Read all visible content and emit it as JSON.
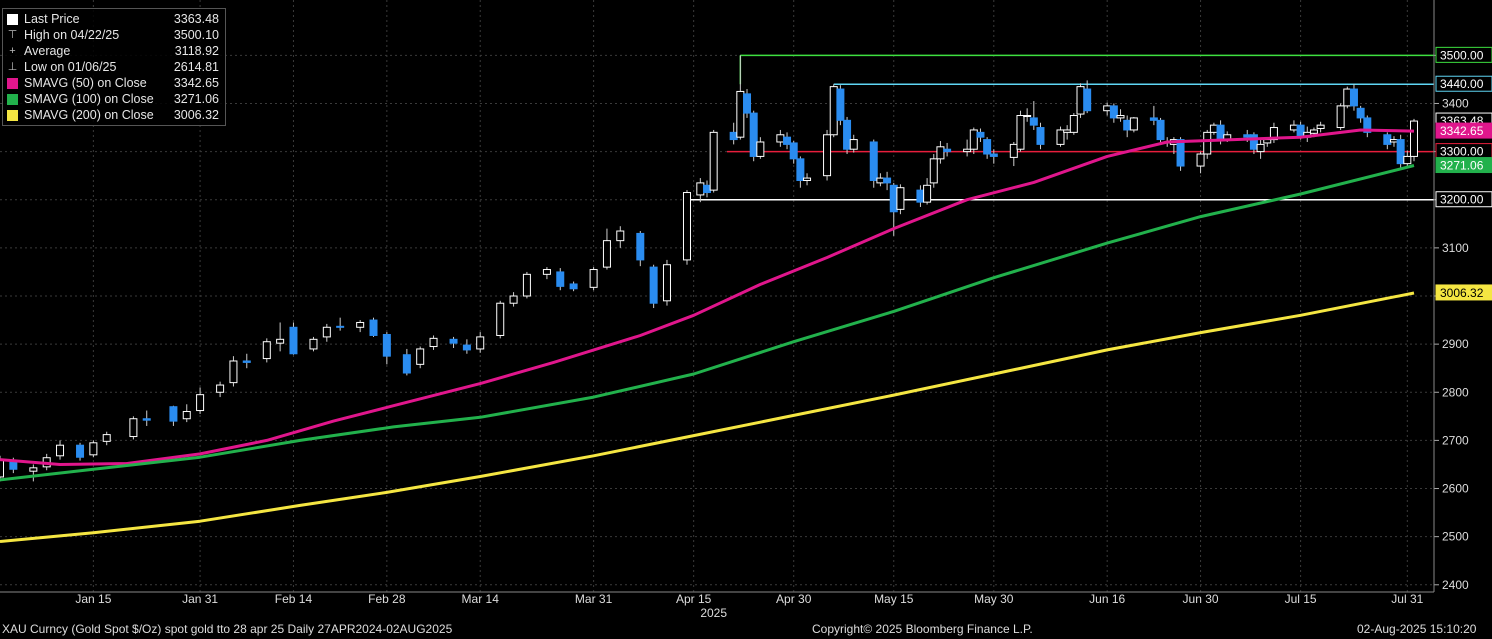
{
  "legend": [
    {
      "label": "Last Price",
      "value": "3363.48",
      "marker": "square",
      "color": "#ffffff"
    },
    {
      "label": "High on 04/22/25",
      "value": "3500.10",
      "marker": "high",
      "color": "#bbbbbb"
    },
    {
      "label": "Average",
      "value": "3118.92",
      "marker": "avg",
      "color": "#bbbbbb"
    },
    {
      "label": "Low on 01/06/25",
      "value": "2614.81",
      "marker": "low",
      "color": "#bbbbbb"
    },
    {
      "label": "SMAVG (50)  on Close",
      "value": "3342.65",
      "marker": "square",
      "color": "#e0168c"
    },
    {
      "label": "SMAVG (100)  on Close",
      "value": "3271.06",
      "marker": "square",
      "color": "#22b14c"
    },
    {
      "label": "SMAVG (200)  on Close",
      "value": "3006.32",
      "marker": "square",
      "color": "#f5e642"
    }
  ],
  "footer": {
    "security": "XAU Curncy (Gold Spot  $/Oz) spot gold tto 28 apr 25  Daily 27APR2024-02AUG2025",
    "copyright": "Copyright© 2025 Bloomberg Finance L.P.",
    "timestamp": "02-Aug-2025 15:10:20"
  },
  "chart_data": {
    "type": "line",
    "title": "",
    "xlabel": "",
    "ylabel": "",
    "ylim": [
      2385,
      3615
    ],
    "yticks": [
      2400,
      2500,
      2600,
      2700,
      2800,
      2900,
      3000,
      3100,
      3200,
      3300,
      3400,
      3500
    ],
    "ytick_labels": [
      "2400",
      "2500",
      "2600",
      "2700",
      "2800",
      "2900",
      "3000",
      "3100",
      "3200",
      "3300",
      "3400",
      "3500"
    ],
    "x_start": "2025-01-01",
    "x_end": "2025-08-04",
    "xticks": [
      {
        "date": "2025-01-15",
        "label": "Jan 15"
      },
      {
        "date": "2025-01-31",
        "label": "Jan 31"
      },
      {
        "date": "2025-02-14",
        "label": "Feb 14"
      },
      {
        "date": "2025-02-28",
        "label": "Feb 28"
      },
      {
        "date": "2025-03-14",
        "label": "Mar 14"
      },
      {
        "date": "2025-03-31",
        "label": "Mar 31"
      },
      {
        "date": "2025-04-15",
        "label": "Apr 15"
      },
      {
        "date": "2025-04-30",
        "label": "Apr 30"
      },
      {
        "date": "2025-05-15",
        "label": "May 15"
      },
      {
        "date": "2025-05-30",
        "label": "May 30"
      },
      {
        "date": "2025-06-16",
        "label": "Jun 16"
      },
      {
        "date": "2025-06-30",
        "label": "Jun 30"
      },
      {
        "date": "2025-07-15",
        "label": "Jul 15"
      },
      {
        "date": "2025-07-31",
        "label": "Jul 31"
      }
    ],
    "year_label": {
      "date": "2025-04-18",
      "label": "2025"
    },
    "grid": true,
    "legend_position": "top-left",
    "up_color": "#ffffff",
    "down_color": "#2a8cf0",
    "series": [
      {
        "name": "SMAVG (50)  on Close",
        "color": "#e0168c",
        "points": [
          [
            "2025-01-01",
            2660
          ],
          [
            "2025-01-10",
            2650
          ],
          [
            "2025-01-20",
            2652
          ],
          [
            "2025-01-31",
            2672
          ],
          [
            "2025-02-10",
            2700
          ],
          [
            "2025-02-20",
            2740
          ],
          [
            "2025-03-01",
            2772
          ],
          [
            "2025-03-14",
            2818
          ],
          [
            "2025-03-25",
            2862
          ],
          [
            "2025-04-07",
            2918
          ],
          [
            "2025-04-15",
            2960
          ],
          [
            "2025-04-25",
            3024
          ],
          [
            "2025-05-05",
            3080
          ],
          [
            "2025-05-15",
            3140
          ],
          [
            "2025-05-26",
            3200
          ],
          [
            "2025-06-05",
            3236
          ],
          [
            "2025-06-16",
            3290
          ],
          [
            "2025-06-25",
            3320
          ],
          [
            "2025-07-05",
            3325
          ],
          [
            "2025-07-15",
            3330
          ],
          [
            "2025-07-24",
            3345
          ],
          [
            "2025-08-01",
            3342.65
          ]
        ]
      },
      {
        "name": "SMAVG (100)  on Close",
        "color": "#22b14c",
        "points": [
          [
            "2025-01-01",
            2618
          ],
          [
            "2025-01-15",
            2640
          ],
          [
            "2025-01-31",
            2665
          ],
          [
            "2025-02-15",
            2700
          ],
          [
            "2025-03-01",
            2728
          ],
          [
            "2025-03-14",
            2748
          ],
          [
            "2025-03-31",
            2790
          ],
          [
            "2025-04-15",
            2838
          ],
          [
            "2025-04-30",
            2905
          ],
          [
            "2025-05-15",
            2968
          ],
          [
            "2025-05-30",
            3038
          ],
          [
            "2025-06-16",
            3110
          ],
          [
            "2025-06-30",
            3165
          ],
          [
            "2025-07-15",
            3212
          ],
          [
            "2025-08-01",
            3271.06
          ]
        ]
      },
      {
        "name": "SMAVG (200)  on Close",
        "color": "#f5e642",
        "points": [
          [
            "2025-01-01",
            2490
          ],
          [
            "2025-01-15",
            2508
          ],
          [
            "2025-01-31",
            2532
          ],
          [
            "2025-02-15",
            2565
          ],
          [
            "2025-02-28",
            2592
          ],
          [
            "2025-03-14",
            2625
          ],
          [
            "2025-03-31",
            2668
          ],
          [
            "2025-04-15",
            2710
          ],
          [
            "2025-04-30",
            2752
          ],
          [
            "2025-05-15",
            2794
          ],
          [
            "2025-05-30",
            2838
          ],
          [
            "2025-06-16",
            2888
          ],
          [
            "2025-06-30",
            2924
          ],
          [
            "2025-07-15",
            2960
          ],
          [
            "2025-08-01",
            3006.32
          ]
        ]
      }
    ],
    "candles": [
      [
        "2025-01-01",
        2624,
        2660,
        2614.81,
        2668
      ],
      [
        "2025-01-03",
        2655,
        2640,
        2632,
        2664
      ],
      [
        "2025-01-06",
        2636,
        2643,
        2614.81,
        2650
      ],
      [
        "2025-01-08",
        2645,
        2664,
        2638,
        2672
      ],
      [
        "2025-01-10",
        2668,
        2690,
        2660,
        2700
      ],
      [
        "2025-01-13",
        2690,
        2665,
        2658,
        2695
      ],
      [
        "2025-01-15",
        2670,
        2695,
        2665,
        2700
      ],
      [
        "2025-01-17",
        2698,
        2712,
        2690,
        2718
      ],
      [
        "2025-01-21",
        2708,
        2745,
        2702,
        2750
      ],
      [
        "2025-01-23",
        2745,
        2742,
        2730,
        2762
      ],
      [
        "2025-01-27",
        2770,
        2740,
        2730,
        2772
      ],
      [
        "2025-01-29",
        2745,
        2760,
        2738,
        2775
      ],
      [
        "2025-01-31",
        2762,
        2795,
        2755,
        2810
      ],
      [
        "2025-02-03",
        2800,
        2815,
        2790,
        2822
      ],
      [
        "2025-02-05",
        2820,
        2865,
        2812,
        2875
      ],
      [
        "2025-02-07",
        2865,
        2862,
        2850,
        2880
      ],
      [
        "2025-02-10",
        2870,
        2905,
        2862,
        2912
      ],
      [
        "2025-02-12",
        2902,
        2910,
        2885,
        2945
      ],
      [
        "2025-02-14",
        2935,
        2880,
        2878,
        2945
      ],
      [
        "2025-02-17",
        2890,
        2910,
        2885,
        2915
      ],
      [
        "2025-02-19",
        2915,
        2935,
        2905,
        2942
      ],
      [
        "2025-02-21",
        2937,
        2935,
        2928,
        2955
      ],
      [
        "2025-02-24",
        2935,
        2945,
        2925,
        2950
      ],
      [
        "2025-02-26",
        2950,
        2918,
        2915,
        2955
      ],
      [
        "2025-02-28",
        2920,
        2875,
        2858,
        2925
      ],
      [
        "2025-03-03",
        2878,
        2840,
        2835,
        2890
      ],
      [
        "2025-03-05",
        2858,
        2890,
        2850,
        2895
      ],
      [
        "2025-03-07",
        2895,
        2912,
        2888,
        2918
      ],
      [
        "2025-03-10",
        2910,
        2902,
        2892,
        2915
      ],
      [
        "2025-03-12",
        2898,
        2888,
        2880,
        2910
      ],
      [
        "2025-03-14",
        2890,
        2915,
        2882,
        2925
      ],
      [
        "2025-03-17",
        2918,
        2985,
        2912,
        2990
      ],
      [
        "2025-03-19",
        2985,
        3000,
        2978,
        3008
      ],
      [
        "2025-03-21",
        3000,
        3045,
        2995,
        3050
      ],
      [
        "2025-03-24",
        3045,
        3055,
        3035,
        3060
      ],
      [
        "2025-03-26",
        3050,
        3020,
        3012,
        3058
      ],
      [
        "2025-03-28",
        3025,
        3015,
        3010,
        3030
      ],
      [
        "2025-03-31",
        3018,
        3055,
        3012,
        3060
      ],
      [
        "2025-04-02",
        3060,
        3115,
        3055,
        3140
      ],
      [
        "2025-04-04",
        3115,
        3135,
        3100,
        3145
      ],
      [
        "2025-04-07",
        3130,
        3075,
        3062,
        3135
      ],
      [
        "2025-04-09",
        3060,
        2985,
        2975,
        3065
      ],
      [
        "2025-04-11",
        2990,
        3065,
        2980,
        3075
      ],
      [
        "2025-04-14",
        3075,
        3215,
        3065,
        3220
      ],
      [
        "2025-04-16",
        3210,
        3235,
        3195,
        3245
      ],
      [
        "2025-04-17",
        3230,
        3215,
        3205,
        3240
      ],
      [
        "2025-04-18",
        3220,
        3340,
        3215,
        3345
      ],
      [
        "2025-04-21",
        3340,
        3325,
        3315,
        3360
      ],
      [
        "2025-04-22",
        3330,
        3425,
        3325,
        3500.1
      ],
      [
        "2025-04-23",
        3420,
        3380,
        3370,
        3430
      ],
      [
        "2025-04-24",
        3380,
        3290,
        3280,
        3385
      ],
      [
        "2025-04-25",
        3290,
        3320,
        3285,
        3330
      ],
      [
        "2025-04-28",
        3320,
        3335,
        3310,
        3345
      ],
      [
        "2025-04-29",
        3330,
        3315,
        3305,
        3340
      ],
      [
        "2025-04-30",
        3318,
        3285,
        3275,
        3322
      ],
      [
        "2025-05-01",
        3285,
        3240,
        3225,
        3290
      ],
      [
        "2025-05-02",
        3240,
        3245,
        3230,
        3255
      ],
      [
        "2025-05-05",
        3250,
        3335,
        3240,
        3345
      ],
      [
        "2025-05-06",
        3335,
        3435,
        3330,
        3440
      ],
      [
        "2025-05-07",
        3430,
        3365,
        3355,
        3438
      ],
      [
        "2025-05-08",
        3365,
        3305,
        3295,
        3372
      ],
      [
        "2025-05-09",
        3305,
        3325,
        3298,
        3335
      ],
      [
        "2025-05-12",
        3320,
        3240,
        3225,
        3325
      ],
      [
        "2025-05-13",
        3235,
        3245,
        3228,
        3255
      ],
      [
        "2025-05-14",
        3245,
        3235,
        3220,
        3258
      ],
      [
        "2025-05-15",
        3230,
        3175,
        3125,
        3235
      ],
      [
        "2025-05-16",
        3180,
        3225,
        3170,
        3232
      ],
      [
        "2025-05-19",
        3220,
        3195,
        3185,
        3230
      ],
      [
        "2025-05-20",
        3195,
        3230,
        3190,
        3245
      ],
      [
        "2025-05-21",
        3235,
        3285,
        3225,
        3295
      ],
      [
        "2025-05-22",
        3285,
        3310,
        3275,
        3322
      ],
      [
        "2025-05-23",
        3305,
        3300,
        3290,
        3318
      ],
      [
        "2025-05-26",
        3300,
        3305,
        3290,
        3325
      ],
      [
        "2025-05-27",
        3305,
        3345,
        3295,
        3350
      ],
      [
        "2025-05-28",
        3340,
        3330,
        3320,
        3348
      ],
      [
        "2025-05-29",
        3325,
        3295,
        3285,
        3330
      ],
      [
        "2025-05-30",
        3295,
        3290,
        3275,
        3305
      ],
      [
        "2025-06-02",
        3288,
        3315,
        3270,
        3320
      ],
      [
        "2025-06-03",
        3305,
        3375,
        3300,
        3385
      ],
      [
        "2025-06-04",
        3375,
        3375,
        3362,
        3390
      ],
      [
        "2025-06-05",
        3370,
        3355,
        3345,
        3405
      ],
      [
        "2025-06-06",
        3350,
        3315,
        3305,
        3360
      ],
      [
        "2025-06-09",
        3315,
        3345,
        3310,
        3352
      ],
      [
        "2025-06-10",
        3340,
        3345,
        3325,
        3355
      ],
      [
        "2025-06-11",
        3340,
        3375,
        3335,
        3380
      ],
      [
        "2025-06-12",
        3378,
        3435,
        3370,
        3442
      ],
      [
        "2025-06-13",
        3430,
        3385,
        3380,
        3448
      ],
      [
        "2025-06-16",
        3385,
        3395,
        3375,
        3402
      ],
      [
        "2025-06-17",
        3395,
        3370,
        3360,
        3400
      ],
      [
        "2025-06-18",
        3370,
        3375,
        3362,
        3388
      ],
      [
        "2025-06-19",
        3365,
        3345,
        3330,
        3375
      ],
      [
        "2025-06-20",
        3345,
        3370,
        3340,
        3372
      ],
      [
        "2025-06-23",
        3370,
        3365,
        3355,
        3395
      ],
      [
        "2025-06-24",
        3365,
        3325,
        3315,
        3370
      ],
      [
        "2025-06-25",
        3320,
        3320,
        3310,
        3330
      ],
      [
        "2025-06-26",
        3315,
        3325,
        3295,
        3330
      ],
      [
        "2025-06-27",
        3325,
        3270,
        3260,
        3330
      ],
      [
        "2025-06-30",
        3270,
        3295,
        3255,
        3300
      ],
      [
        "2025-07-01",
        3295,
        3340,
        3285,
        3345
      ],
      [
        "2025-07-02",
        3340,
        3355,
        3335,
        3360
      ],
      [
        "2025-07-03",
        3355,
        3325,
        3315,
        3365
      ],
      [
        "2025-07-04",
        3325,
        3335,
        3320,
        3342
      ],
      [
        "2025-07-07",
        3335,
        3330,
        3320,
        3345
      ],
      [
        "2025-07-08",
        3335,
        3305,
        3295,
        3340
      ],
      [
        "2025-07-09",
        3300,
        3315,
        3285,
        3325
      ],
      [
        "2025-07-10",
        3318,
        3325,
        3310,
        3330
      ],
      [
        "2025-07-11",
        3325,
        3350,
        3318,
        3360
      ],
      [
        "2025-07-14",
        3345,
        3355,
        3340,
        3365
      ],
      [
        "2025-07-15",
        3355,
        3330,
        3325,
        3362
      ],
      [
        "2025-07-16",
        3330,
        3340,
        3320,
        3352
      ],
      [
        "2025-07-17",
        3338,
        3345,
        3330,
        3350
      ],
      [
        "2025-07-18",
        3348,
        3355,
        3340,
        3362
      ],
      [
        "2025-07-21",
        3350,
        3395,
        3345,
        3400
      ],
      [
        "2025-07-22",
        3395,
        3430,
        3390,
        3435
      ],
      [
        "2025-07-23",
        3430,
        3395,
        3385,
        3440
      ],
      [
        "2025-07-24",
        3390,
        3370,
        3360,
        3395
      ],
      [
        "2025-07-25",
        3370,
        3340,
        3330,
        3375
      ],
      [
        "2025-07-28",
        3335,
        3315,
        3305,
        3340
      ],
      [
        "2025-07-29",
        3320,
        3325,
        3310,
        3332
      ],
      [
        "2025-07-30",
        3325,
        3275,
        3265,
        3335
      ],
      [
        "2025-07-31",
        3275,
        3290,
        3270,
        3302
      ],
      [
        "2025-08-01",
        3290,
        3363.48,
        3280,
        3368
      ]
    ],
    "hlines": [
      {
        "value": 3500,
        "color": "#3ee040",
        "start": "2025-04-22",
        "label": "3500.00"
      },
      {
        "value": 3440,
        "color": "#5fd6f5",
        "start": "2025-05-06",
        "label": "3440.00"
      },
      {
        "value": 3300,
        "color": "#e81e3c",
        "start": "2025-04-20",
        "label": "3300.00"
      },
      {
        "value": 3200,
        "color": "#ffffff",
        "start": "2025-04-14",
        "label": "3200.00"
      }
    ],
    "price_tags": [
      {
        "value": 3363.48,
        "label": "3363.48",
        "bg": "#000000",
        "fg": "#ffffff",
        "border": "#ffffff"
      },
      {
        "value": 3342.65,
        "label": "3342.65",
        "bg": "#e0168c",
        "fg": "#ffffff",
        "border": "#e0168c"
      },
      {
        "value": 3271.06,
        "label": "3271.06",
        "bg": "#22b14c",
        "fg": "#ffffff",
        "border": "#22b14c"
      },
      {
        "value": 3006.32,
        "label": "3006.32",
        "bg": "#f5e642",
        "fg": "#000000",
        "border": "#f5e642"
      }
    ]
  }
}
